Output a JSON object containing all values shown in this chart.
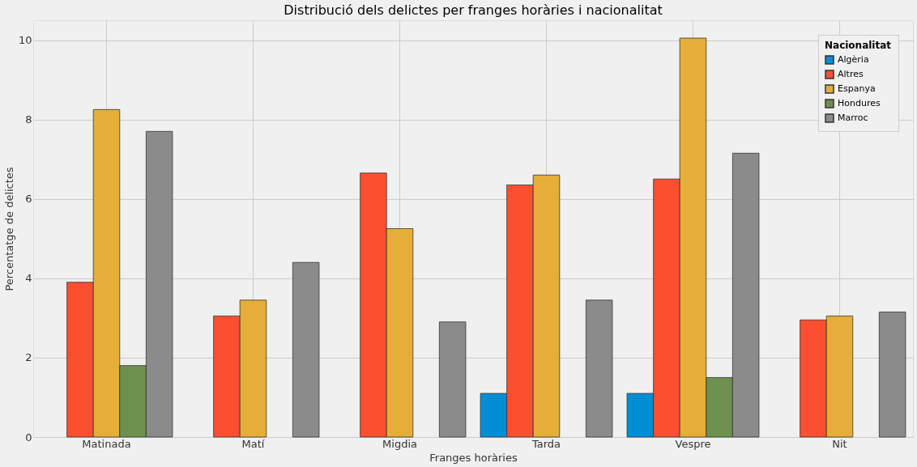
{
  "chart_data": {
    "type": "bar",
    "title": "Distribució dels delictes per franges horàries i nacionalitat",
    "xlabel": "Franges horàries",
    "ylabel": "Percentatge de delictes",
    "legend_title": "Nacionalitat",
    "categories": [
      "Matinada",
      "Matí",
      "Migdia",
      "Tarda",
      "Vespre",
      "Nit"
    ],
    "series": [
      {
        "name": "Algèria",
        "color": "#008fd5",
        "values": [
          null,
          null,
          null,
          1.1,
          1.1,
          null
        ]
      },
      {
        "name": "Altres",
        "color": "#fc4f30",
        "values": [
          3.9,
          3.05,
          6.65,
          6.35,
          6.5,
          2.95
        ]
      },
      {
        "name": "Espanya",
        "color": "#e5ae38",
        "values": [
          8.25,
          3.45,
          5.25,
          6.6,
          10.05,
          3.05
        ]
      },
      {
        "name": "Hondures",
        "color": "#6d904f",
        "values": [
          1.8,
          null,
          null,
          null,
          1.5,
          null
        ]
      },
      {
        "name": "Marroc",
        "color": "#8b8b8b",
        "values": [
          7.7,
          4.4,
          2.9,
          3.45,
          7.15,
          3.15
        ]
      }
    ],
    "ylim": [
      0,
      10.5
    ],
    "yticks": [
      0,
      2,
      4,
      6,
      8,
      10
    ],
    "grid": true,
    "legend": "top right"
  }
}
